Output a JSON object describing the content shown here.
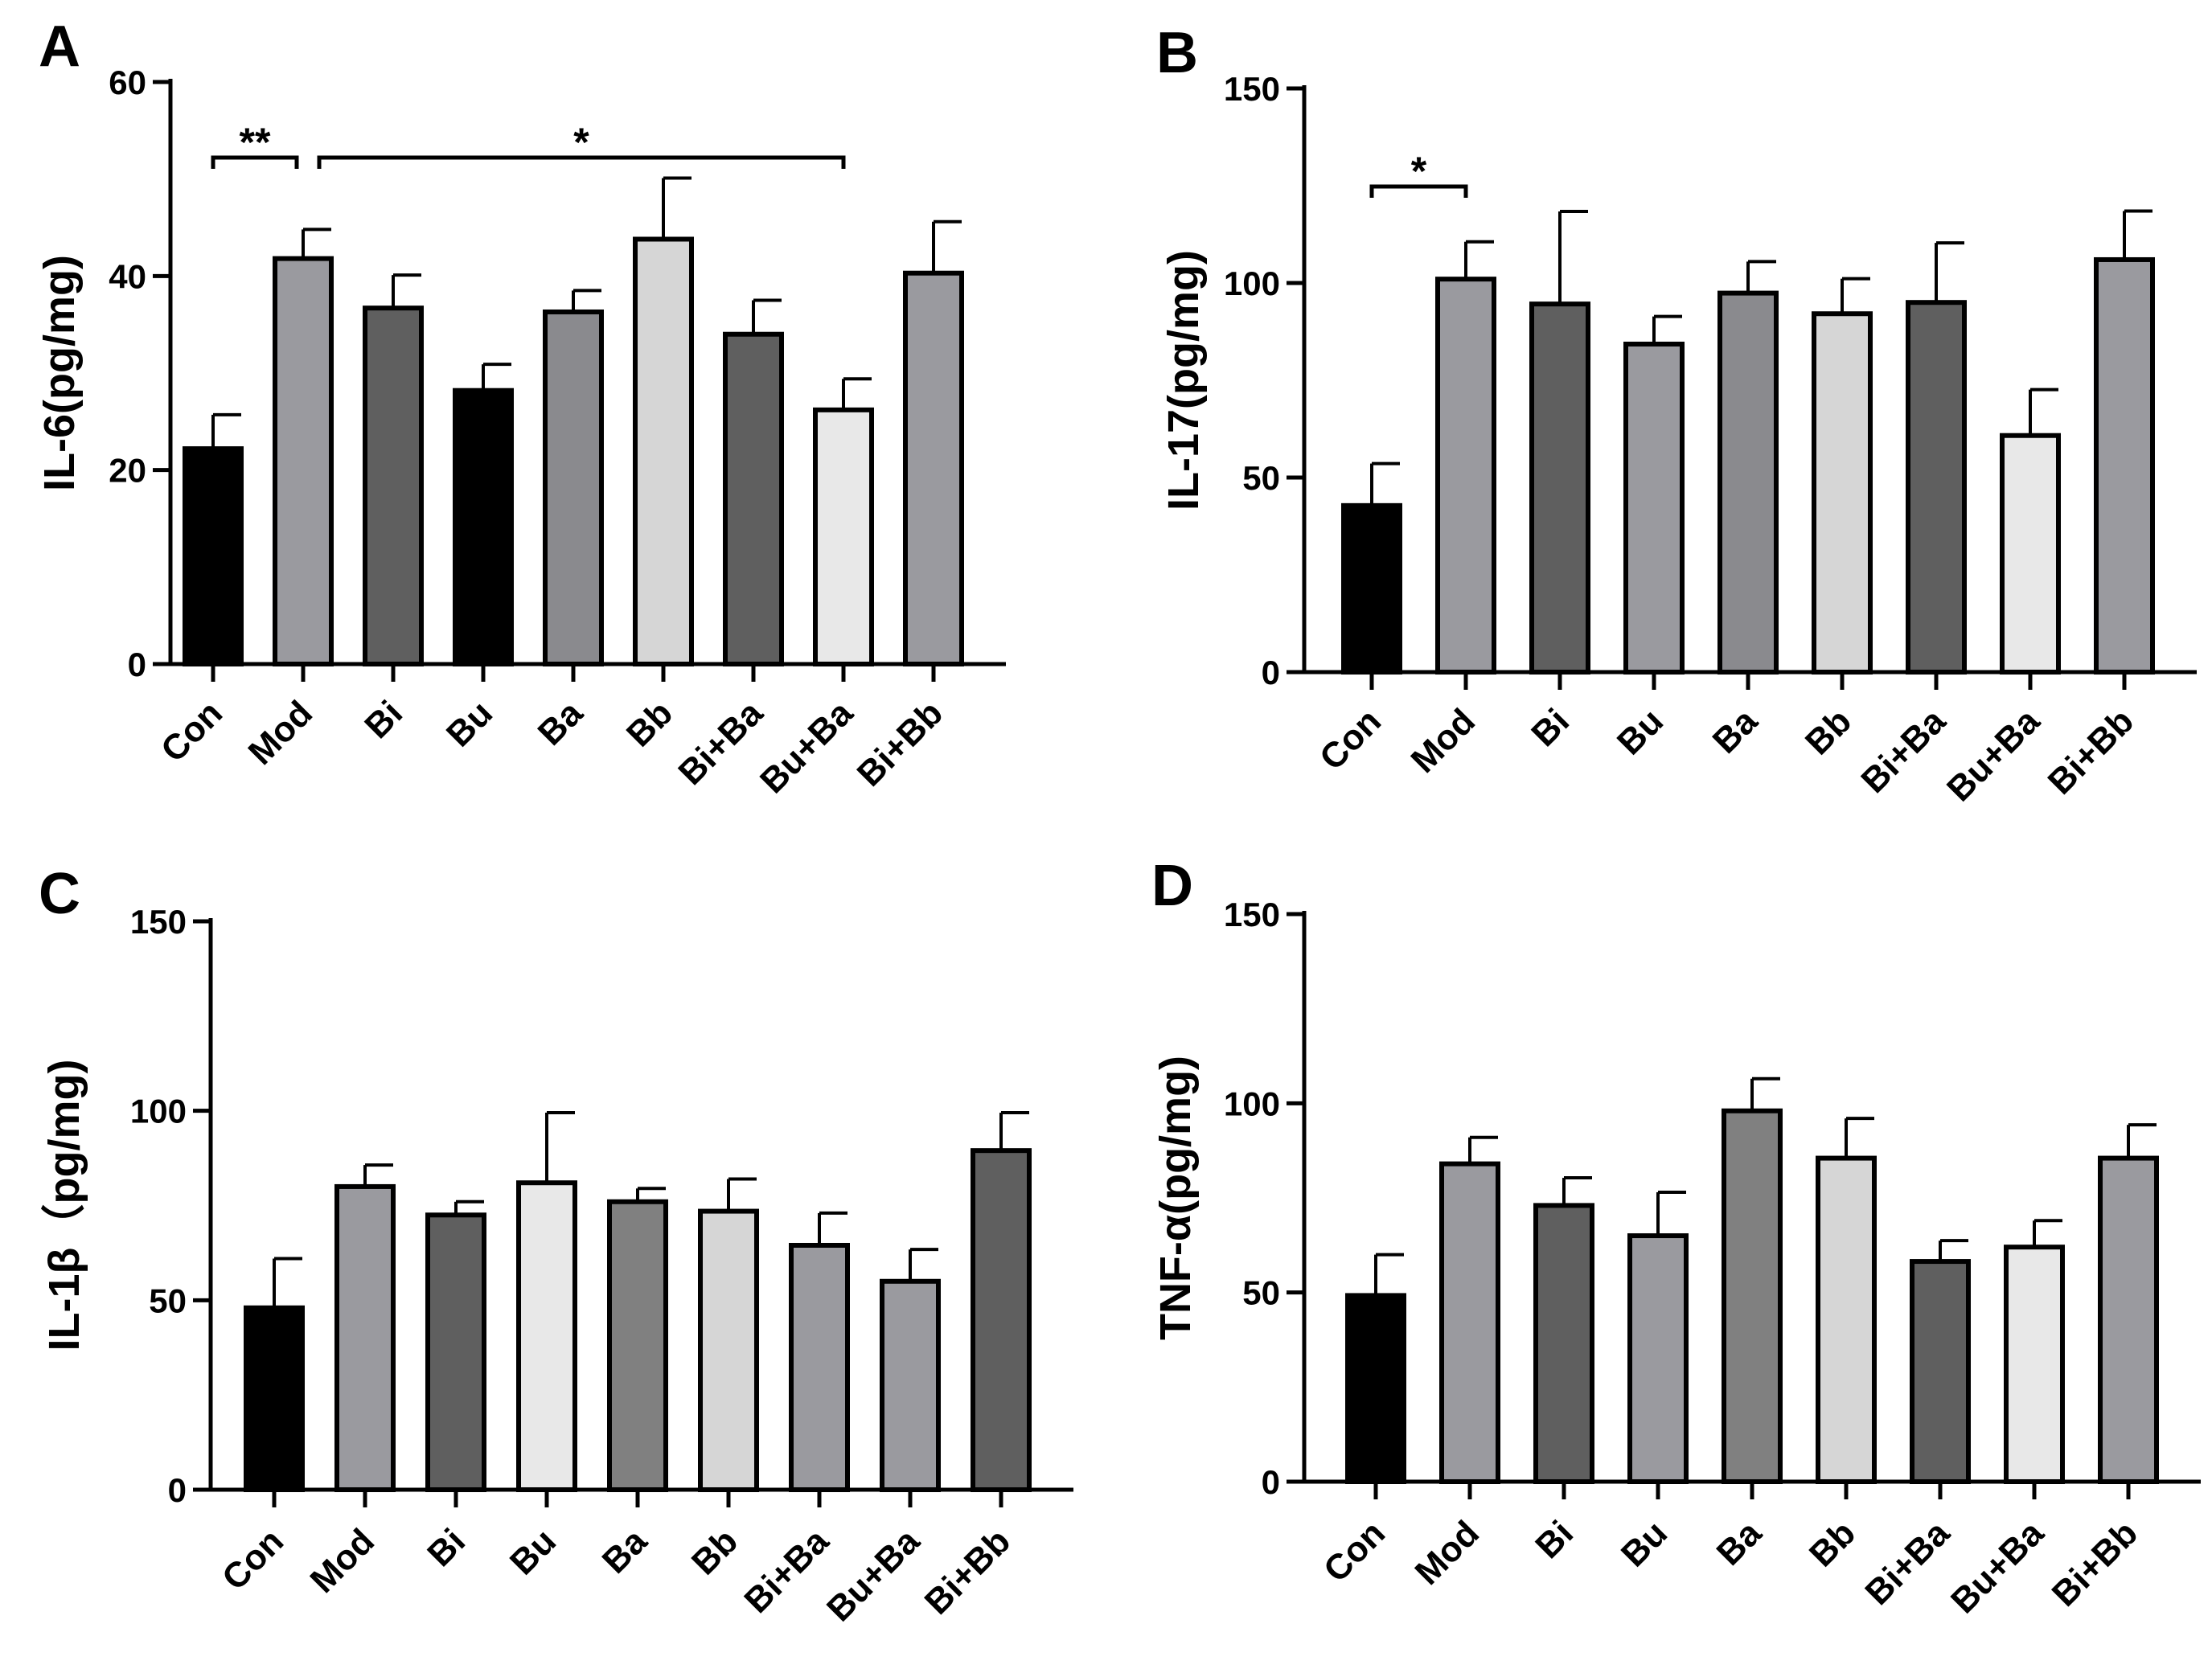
{
  "chart_data": [
    {
      "type": "bar",
      "panel_label": "A",
      "ylabel": "IL-6(pg/mg)",
      "ylim": [
        0,
        60
      ],
      "yticks": [
        0,
        20,
        40,
        60
      ],
      "categories": [
        "Con",
        "Mod",
        "Bi",
        "Bu",
        "Ba",
        "Bb",
        "Bi+Ba",
        "Bu+Ba",
        "Bi+Bb"
      ],
      "values": [
        22.2,
        41.8,
        36.7,
        28.2,
        36.3,
        43.8,
        34.0,
        26.2,
        40.3
      ],
      "errors": [
        3.5,
        3.0,
        3.4,
        2.7,
        2.2,
        6.3,
        3.5,
        3.2,
        5.3
      ],
      "colors": [
        "#000000",
        "#9a9a9f",
        "#5f5f5f",
        "#000000",
        "#8a8a8e",
        "#d6d6d6",
        "#5f5f5f",
        "#e8e8e8",
        "#9a9a9f"
      ],
      "annotations": [
        {
          "text": "**",
          "from": "Con",
          "to": "Mod"
        },
        {
          "text": "*",
          "from": "Mod",
          "to": "Bu+Ba"
        }
      ]
    },
    {
      "type": "bar",
      "panel_label": "B",
      "ylabel": "IL-17(pg/mg)",
      "ylim": [
        0,
        150
      ],
      "yticks": [
        0,
        50,
        100,
        150
      ],
      "categories": [
        "Con",
        "Mod",
        "Bi",
        "Bu",
        "Ba",
        "Bb",
        "Bi+Ba",
        "Bu+Ba",
        "Bi+Bb"
      ],
      "values": [
        42.8,
        101.0,
        94.6,
        84.3,
        97.4,
        92.1,
        95.0,
        60.8,
        106.0
      ],
      "errors": [
        10.8,
        9.6,
        23.8,
        7.1,
        8.1,
        9.0,
        15.3,
        11.8,
        12.5
      ],
      "colors": [
        "#000000",
        "#9a9a9f",
        "#5f5f5f",
        "#9a9a9f",
        "#8a8a8e",
        "#d6d6d6",
        "#5f5f5f",
        "#e8e8e8",
        "#9a9a9f"
      ],
      "annotations": [
        {
          "text": "*",
          "from": "Con",
          "to": "Mod"
        }
      ]
    },
    {
      "type": "bar",
      "panel_label": "C",
      "ylabel": "IL-1β（pg/mg)",
      "ylim": [
        0,
        150
      ],
      "yticks": [
        0,
        50,
        100,
        150
      ],
      "categories": [
        "Con",
        "Mod",
        "Bi",
        "Bu",
        "Ba",
        "Bb",
        "Bi+Ba",
        "Bu+Ba",
        "Bi+Bb"
      ],
      "values": [
        48.0,
        80.0,
        72.5,
        81.0,
        76.0,
        73.5,
        64.5,
        55.0,
        89.5
      ],
      "errors": [
        13.0,
        5.7,
        3.5,
        18.5,
        3.5,
        8.5,
        8.5,
        8.4,
        10.0
      ],
      "colors": [
        "#000000",
        "#9a9a9f",
        "#5f5f5f",
        "#e8e8e8",
        "#808080",
        "#d6d6d6",
        "#9a9a9f",
        "#9a9a9f",
        "#5f5f5f"
      ],
      "annotations": []
    },
    {
      "type": "bar",
      "panel_label": "D",
      "ylabel": "TNF-α(pg/mg)",
      "ylim": [
        0,
        150
      ],
      "yticks": [
        0,
        50,
        100,
        150
      ],
      "categories": [
        "Con",
        "Mod",
        "Bi",
        "Bu",
        "Ba",
        "Bb",
        "Bi+Ba",
        "Bu+Ba",
        "Bi+Bb"
      ],
      "values": [
        49.2,
        84.0,
        73.0,
        65.0,
        98.0,
        85.5,
        58.2,
        62.0,
        85.5
      ],
      "errors": [
        10.8,
        7.0,
        7.3,
        11.5,
        8.5,
        10.5,
        5.5,
        7.0,
        8.8
      ],
      "colors": [
        "#000000",
        "#9a9a9f",
        "#5f5f5f",
        "#9a9a9f",
        "#808080",
        "#d6d6d6",
        "#5f5f5f",
        "#e8e8e8",
        "#9a9a9f"
      ],
      "annotations": []
    }
  ]
}
